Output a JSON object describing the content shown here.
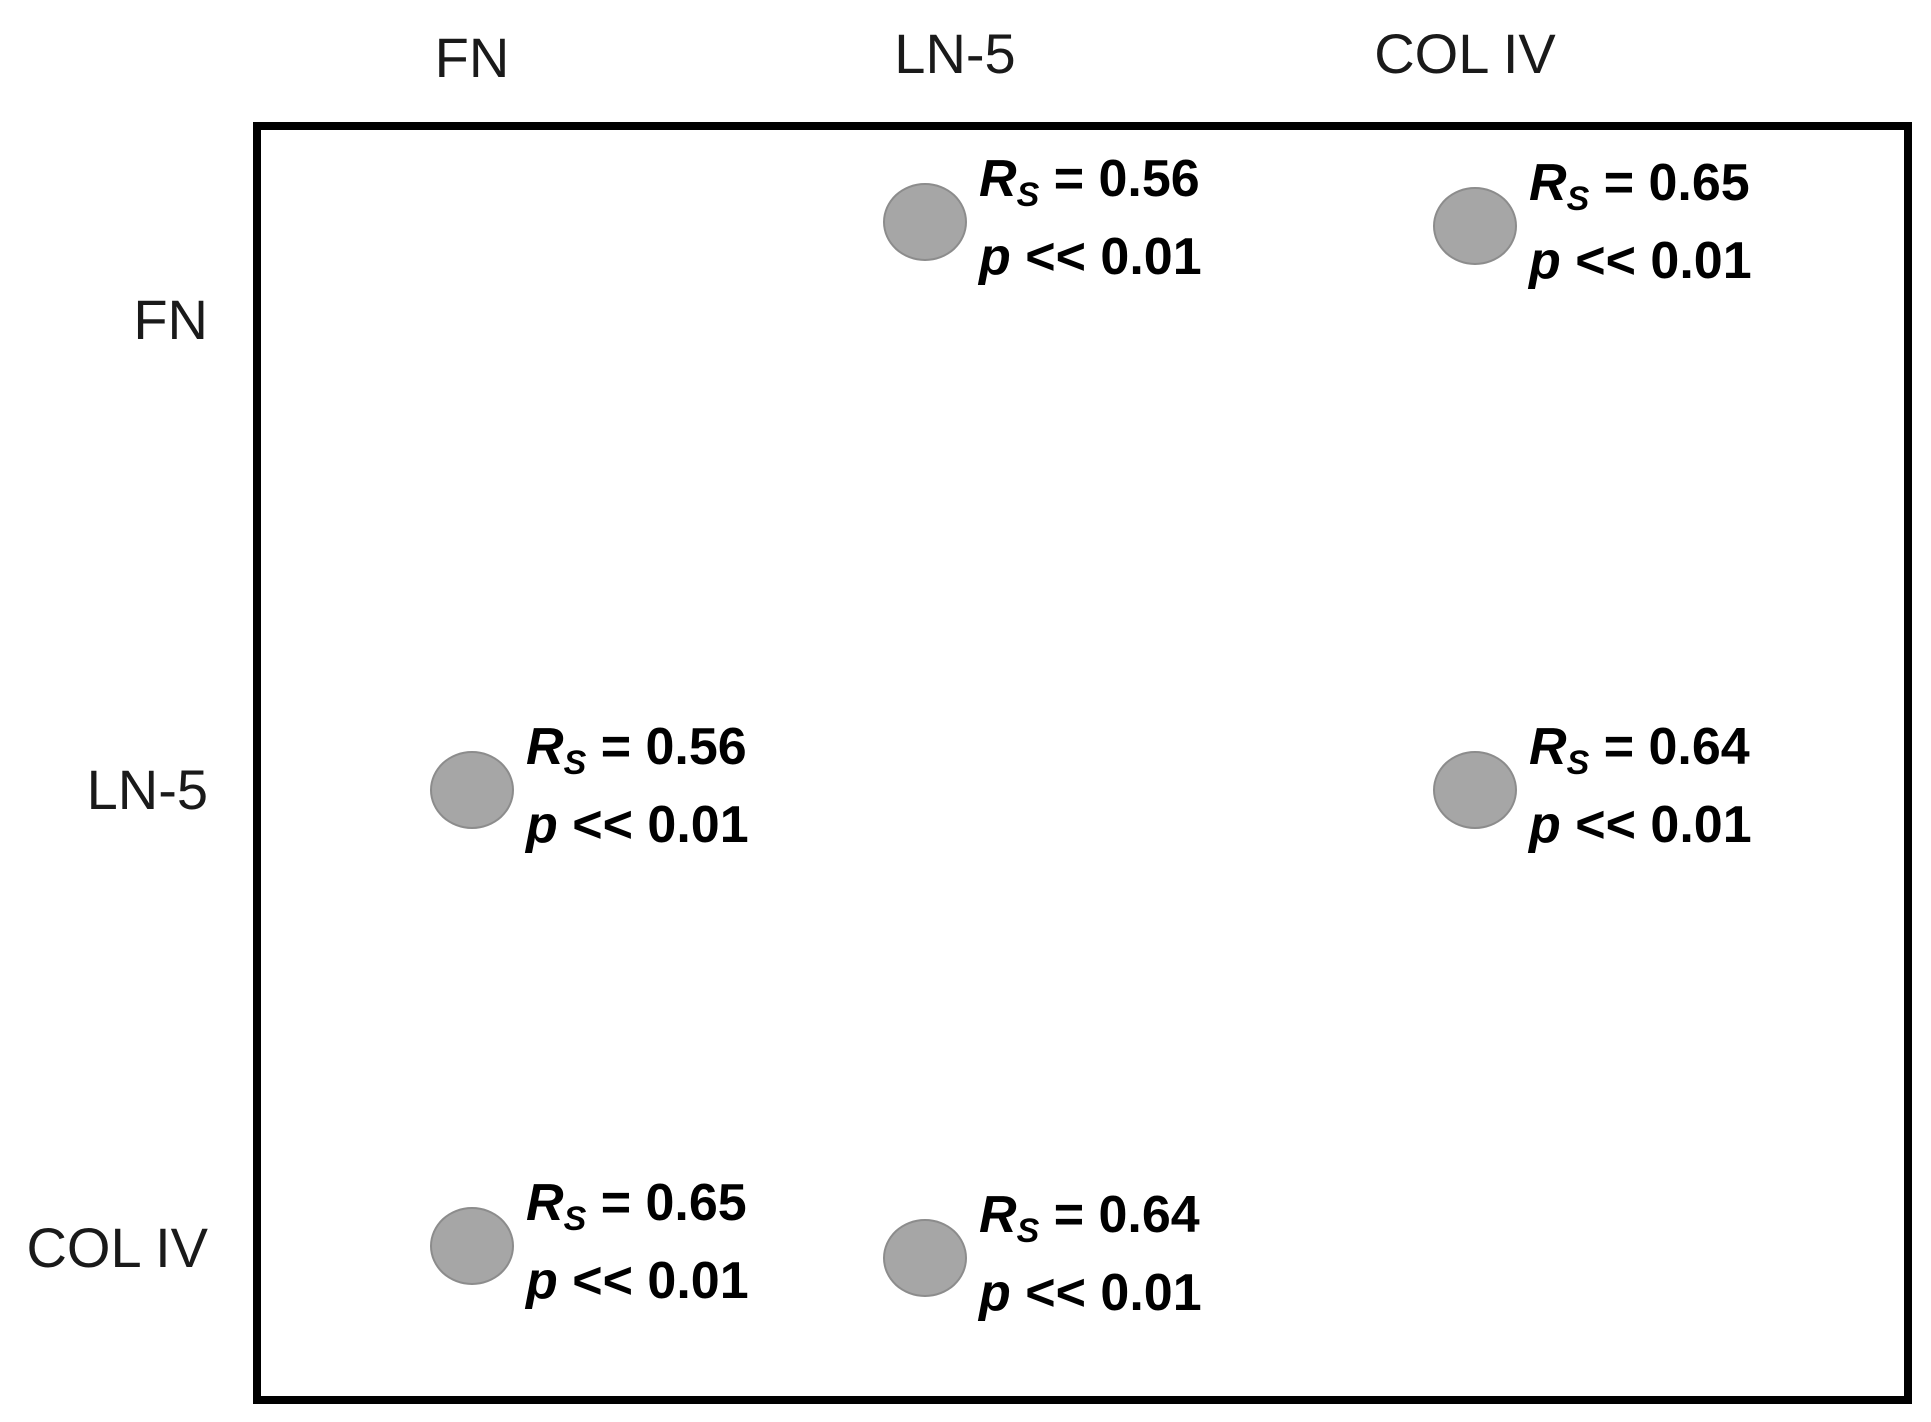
{
  "chart_data": {
    "type": "correlation-matrix",
    "columns": [
      "FN",
      "LN-5",
      "COL IV"
    ],
    "rows": [
      "FN",
      "LN-5",
      "COL IV"
    ],
    "statistic_symbol": "R",
    "statistic_subscript": "S",
    "p_symbol": "p",
    "cells": [
      {
        "row": "FN",
        "col": "LN-5",
        "rs": "0.56",
        "p_text": "<< 0.01"
      },
      {
        "row": "FN",
        "col": "COL IV",
        "rs": "0.65",
        "p_text": "<< 0.01"
      },
      {
        "row": "LN-5",
        "col": "FN",
        "rs": "0.56",
        "p_text": "<< 0.01"
      },
      {
        "row": "LN-5",
        "col": "COL IV",
        "rs": "0.64",
        "p_text": "<< 0.01"
      },
      {
        "row": "COL IV",
        "col": "FN",
        "rs": "0.65",
        "p_text": "<< 0.01"
      },
      {
        "row": "COL IV",
        "col": "LN-5",
        "rs": "0.64",
        "p_text": "<< 0.01"
      }
    ],
    "colors": {
      "marker_fill": "#a6a6a6",
      "marker_stroke": "#8c8c8c",
      "frame": "#000000"
    }
  }
}
